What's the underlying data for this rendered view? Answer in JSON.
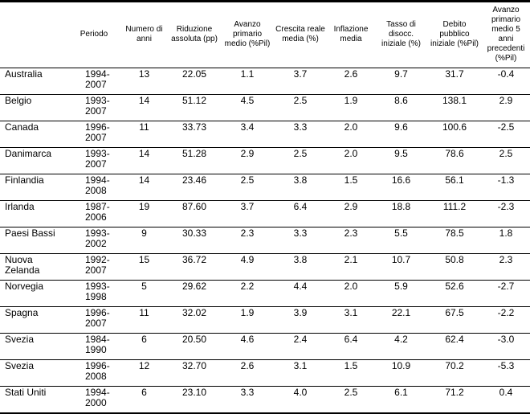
{
  "table": {
    "columns": [
      "",
      "Periodo",
      "Numero di anni",
      "Riduzione assoluta (pp)",
      "Avanzo primario medio (%Pil)",
      "Crescita reale media (%)",
      "Inflazione media",
      "Tasso di disocc. iniziale (%)",
      "Debito pubblico iniziale (%Pil)",
      "Avanzo primario medio 5 anni precedenti (%Pil)"
    ],
    "rows": [
      {
        "country": "Australia",
        "period": "1994-2007",
        "years": "13",
        "reduction": "22.05",
        "surplus": "1.1",
        "growth": "3.7",
        "inflation": "2.6",
        "unemployment": "9.7",
        "debt": "31.7",
        "prev_surplus": "-0.4"
      },
      {
        "country": "Belgio",
        "period": "1993-2007",
        "years": "14",
        "reduction": "51.12",
        "surplus": "4.5",
        "growth": "2.5",
        "inflation": "1.9",
        "unemployment": "8.6",
        "debt": "138.1",
        "prev_surplus": "2.9"
      },
      {
        "country": "Canada",
        "period": "1996-2007",
        "years": "11",
        "reduction": "33.73",
        "surplus": "3.4",
        "growth": "3.3",
        "inflation": "2.0",
        "unemployment": "9.6",
        "debt": "100.6",
        "prev_surplus": "-2.5"
      },
      {
        "country": "Danimarca",
        "period": "1993-2007",
        "years": "14",
        "reduction": "51.28",
        "surplus": "2.9",
        "growth": "2.5",
        "inflation": "2.0",
        "unemployment": "9.5",
        "debt": "78.6",
        "prev_surplus": "2.5"
      },
      {
        "country": "Finlandia",
        "period": "1994-2008",
        "years": "14",
        "reduction": "23.46",
        "surplus": "2.5",
        "growth": "3.8",
        "inflation": "1.5",
        "unemployment": "16.6",
        "debt": "56.1",
        "prev_surplus": "-1.3"
      },
      {
        "country": "Irlanda",
        "period": "1987-2006",
        "years": "19",
        "reduction": "87.60",
        "surplus": "3.7",
        "growth": "6.4",
        "inflation": "2.9",
        "unemployment": "18.8",
        "debt": "111.2",
        "prev_surplus": "-2.3"
      },
      {
        "country": "Paesi Bassi",
        "period": "1993-2002",
        "years": "9",
        "reduction": "30.33",
        "surplus": "2.3",
        "growth": "3.3",
        "inflation": "2.3",
        "unemployment": "5.5",
        "debt": "78.5",
        "prev_surplus": "1.8"
      },
      {
        "country": "Nuova Zelanda",
        "period": "1992-2007",
        "years": "15",
        "reduction": "36.72",
        "surplus": "4.9",
        "growth": "3.8",
        "inflation": "2.1",
        "unemployment": "10.7",
        "debt": "50.8",
        "prev_surplus": "2.3"
      },
      {
        "country": "Norvegia",
        "period": "1993-1998",
        "years": "5",
        "reduction": "29.62",
        "surplus": "2.2",
        "growth": "4.4",
        "inflation": "2.0",
        "unemployment": "5.9",
        "debt": "52.6",
        "prev_surplus": "-2.7"
      },
      {
        "country": "Spagna",
        "period": "1996-2007",
        "years": "11",
        "reduction": "32.02",
        "surplus": "1.9",
        "growth": "3.9",
        "inflation": "3.1",
        "unemployment": "22.1",
        "debt": "67.5",
        "prev_surplus": "-2.2"
      },
      {
        "country": "Svezia",
        "period": "1984-1990",
        "years": "6",
        "reduction": "20.50",
        "surplus": "4.6",
        "growth": "2.4",
        "inflation": "6.4",
        "unemployment": "4.2",
        "debt": "62.4",
        "prev_surplus": "-3.0"
      },
      {
        "country": "Svezia",
        "period": "1996-2008",
        "years": "12",
        "reduction": "32.70",
        "surplus": "2.6",
        "growth": "3.1",
        "inflation": "1.5",
        "unemployment": "10.9",
        "debt": "70.2",
        "prev_surplus": "-5.3"
      },
      {
        "country": "Stati Uniti",
        "period": "1994-2000",
        "years": "6",
        "reduction": "23.10",
        "surplus": "3.3",
        "growth": "4.0",
        "inflation": "2.5",
        "unemployment": "6.1",
        "debt": "71.2",
        "prev_surplus": "0.4"
      }
    ]
  }
}
